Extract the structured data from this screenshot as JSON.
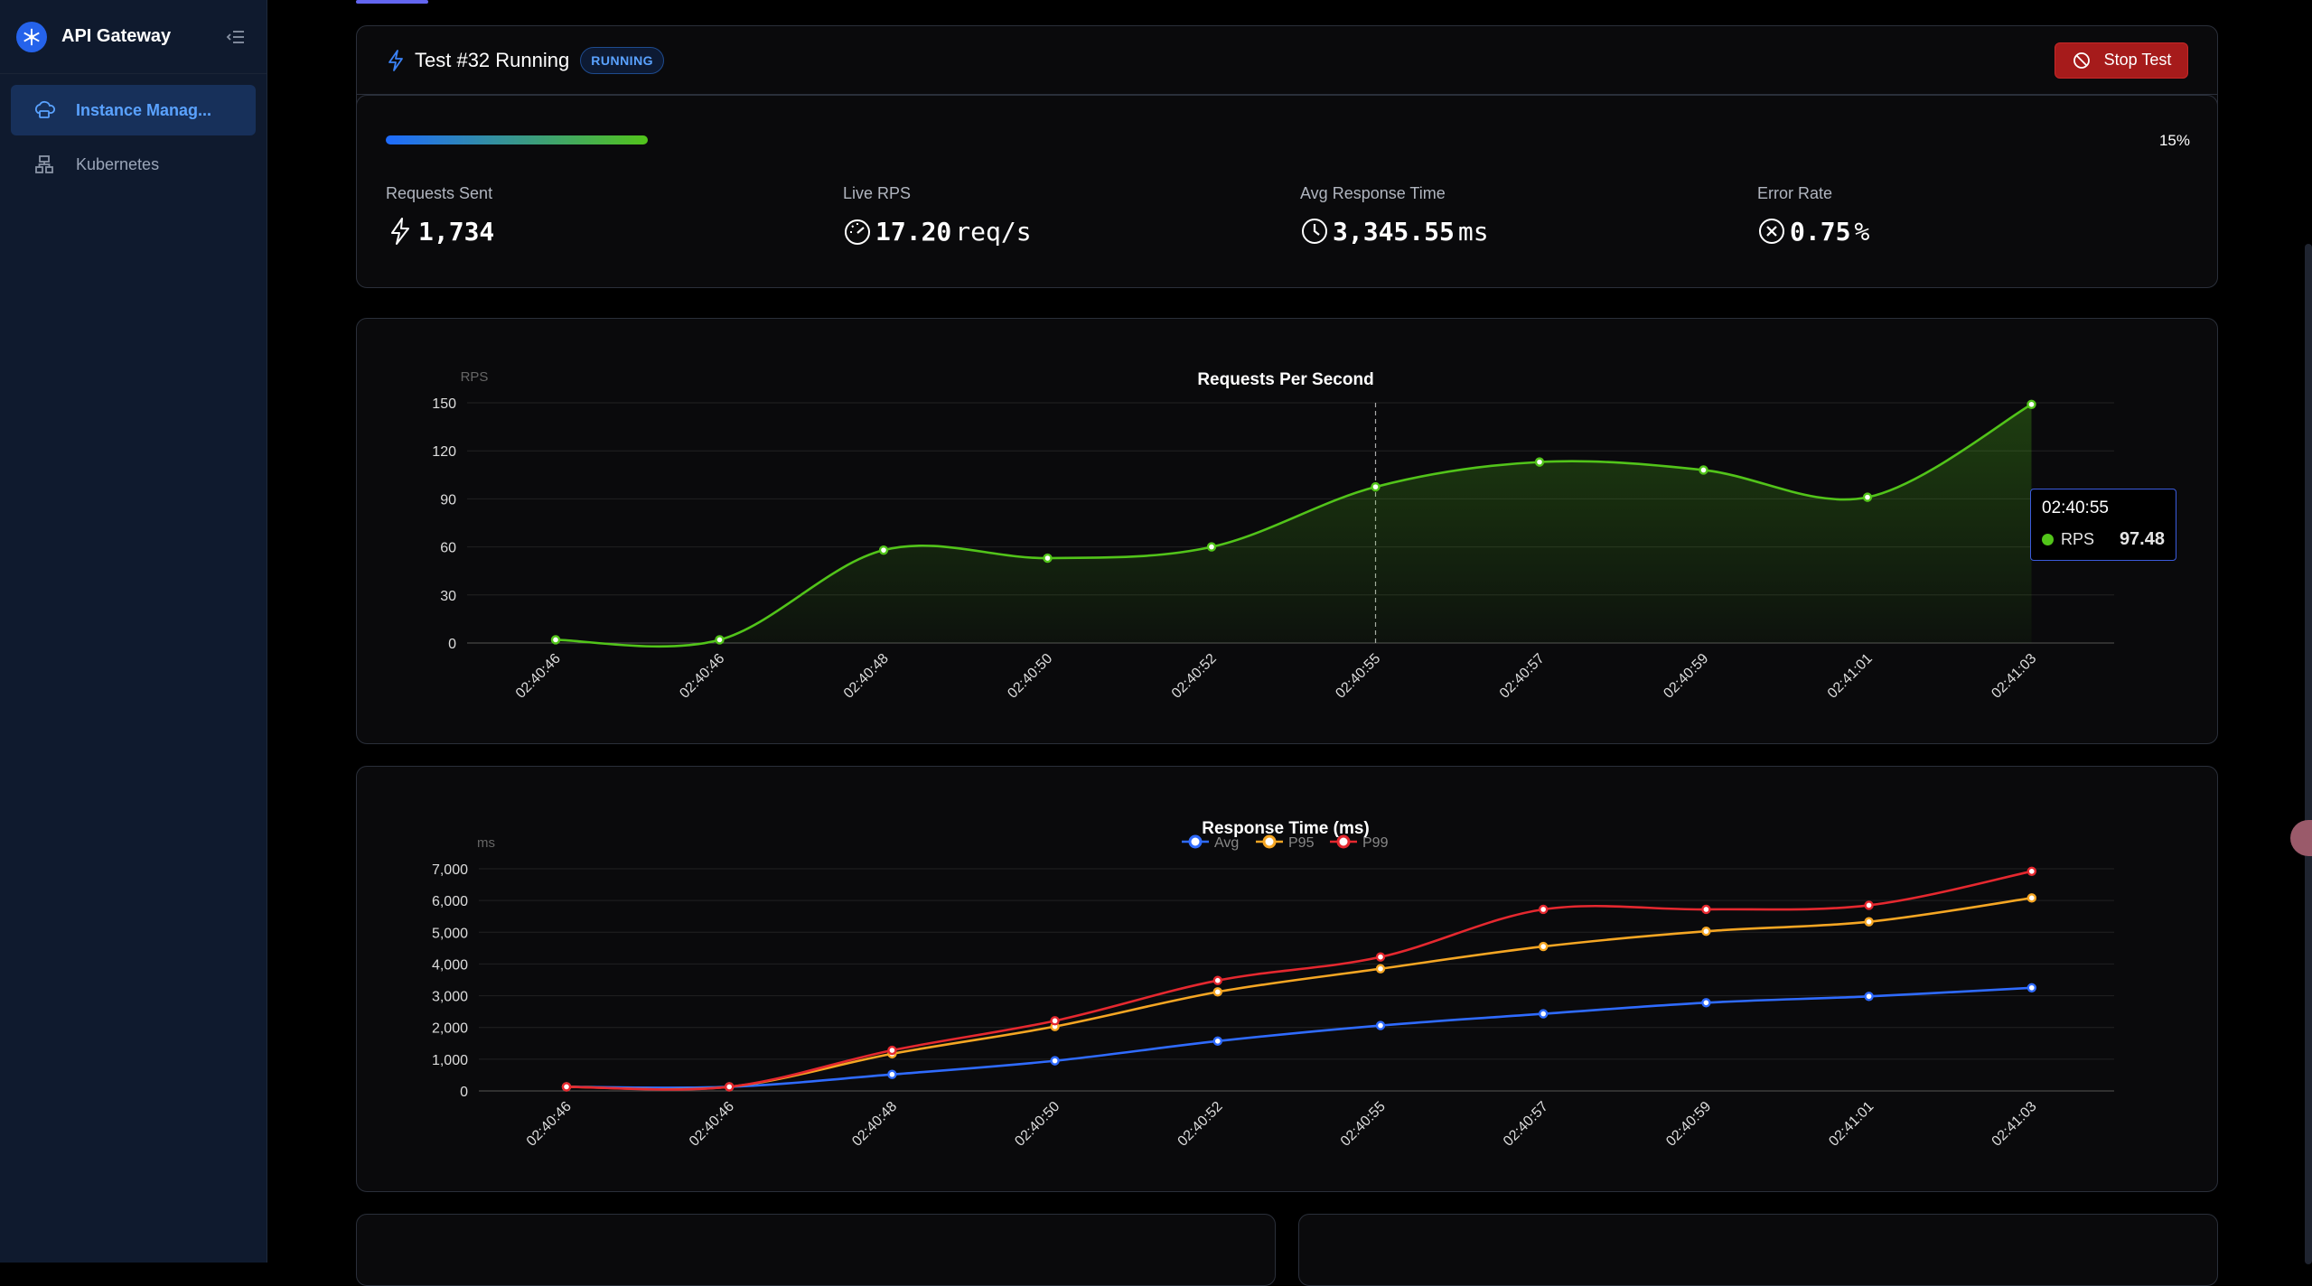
{
  "sidebar": {
    "app_title": "API Gateway",
    "items": [
      {
        "label": "Instance Manag...",
        "icon": "cloud-server-icon",
        "active": true
      },
      {
        "label": "Kubernetes",
        "icon": "cluster-icon",
        "active": false
      }
    ]
  },
  "test": {
    "title": "Test #32 Running",
    "status": "RUNNING",
    "stop_label": "Stop Test",
    "progress": 15,
    "progress_label": "15%"
  },
  "stats": [
    {
      "label": "Requests Sent",
      "value": "1,734",
      "unit": "",
      "icon": "bolt-icon"
    },
    {
      "label": "Live RPS",
      "value": "17.20",
      "unit": "req/s",
      "icon": "gauge-icon"
    },
    {
      "label": "Avg Response Time",
      "value": "3,345.55",
      "unit": "ms",
      "icon": "clock-icon"
    },
    {
      "label": "Error Rate",
      "value": "0.75",
      "unit": "%",
      "icon": "close-circle-icon"
    }
  ],
  "colors": {
    "rps": "#52c41a",
    "avg": "#2f6bff",
    "p95": "#f5a623",
    "p99": "#e5282f"
  },
  "chart_data": [
    {
      "type": "area",
      "title": "Requests Per Second",
      "ylabel": "RPS",
      "ylim": [
        0,
        150
      ],
      "yticks": [
        "0",
        "30",
        "60",
        "90",
        "120",
        "150"
      ],
      "categories": [
        "02:40:46",
        "02:40:46",
        "02:40:48",
        "02:40:50",
        "02:40:52",
        "02:40:55",
        "02:40:57",
        "02:40:59",
        "02:41:01",
        "02:41:03"
      ],
      "series": [
        {
          "values": [
            2,
            2,
            58,
            53,
            60,
            97.48,
            113,
            108,
            91,
            149
          ]
        }
      ],
      "tooltip": {
        "x": "02:40:55",
        "series": "RPS",
        "value": "97.48"
      }
    },
    {
      "type": "line",
      "title": "Response Time (ms)",
      "ylabel": "ms",
      "ylim": [
        0,
        7000
      ],
      "yticks": [
        "0",
        "1,000",
        "2,000",
        "3,000",
        "4,000",
        "5,000",
        "6,000",
        "7,000"
      ],
      "legend": "top",
      "categories": [
        "02:40:46",
        "02:40:46",
        "02:40:48",
        "02:40:50",
        "02:40:52",
        "02:40:55",
        "02:40:57",
        "02:40:59",
        "02:41:01",
        "02:41:03"
      ],
      "series": [
        {
          "name": "Avg",
          "values": [
            130,
            130,
            520,
            950,
            1570,
            2060,
            2430,
            2780,
            2980,
            3250
          ]
        },
        {
          "name": "P95",
          "values": [
            130,
            130,
            1170,
            2030,
            3120,
            3850,
            4550,
            5030,
            5330,
            6080
          ]
        },
        {
          "name": "P99",
          "values": [
            130,
            130,
            1280,
            2210,
            3480,
            4220,
            5720,
            5720,
            5850,
            6920
          ]
        }
      ]
    }
  ]
}
